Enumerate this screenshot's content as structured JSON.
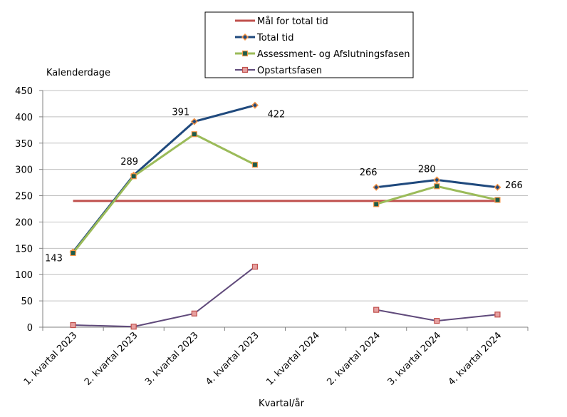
{
  "chart_data": {
    "type": "line",
    "ylabel": "Kalenderdage",
    "xlabel": "Kvartal/år",
    "ylim": [
      0,
      450
    ],
    "yticks": [
      0,
      50,
      100,
      150,
      200,
      250,
      300,
      350,
      400,
      450
    ],
    "grid": true,
    "legend_placement": "top-center",
    "categories": [
      "1. kvartal 2023",
      "2. kvartal 2023",
      "3. kvartal 2023",
      "4. kvartal 2023",
      "1. kvartal 2024",
      "2. kvartal 2024",
      "3. kvartal 2024",
      "4. kvartal 2024"
    ],
    "series": [
      {
        "name": "Mål for total tid",
        "color": "#c0504d",
        "marker": "none",
        "values": [
          240,
          240,
          240,
          240,
          240,
          240,
          240,
          240
        ]
      },
      {
        "name": "Total tid",
        "color": "#1f497d",
        "marker": "diamond",
        "marker_fill": "#1f497d",
        "marker_edge": "#f79646",
        "values": [
          143,
          289,
          391,
          422,
          null,
          266,
          280,
          266
        ],
        "data_labels": true
      },
      {
        "name": "Assessment- og Afslutningsfasen",
        "color": "#9bbb59",
        "marker": "square",
        "marker_fill": "#1d5c4a",
        "marker_edge": "#f79646",
        "values": [
          141,
          287,
          367,
          309,
          null,
          234,
          268,
          242
        ]
      },
      {
        "name": "Opstartsfasen",
        "color": "#604a7b",
        "marker": "square",
        "marker_fill": "#e6a0a0",
        "marker_edge": "#c0504d",
        "values": [
          4,
          1,
          26,
          115,
          null,
          33,
          12,
          24
        ]
      }
    ]
  }
}
